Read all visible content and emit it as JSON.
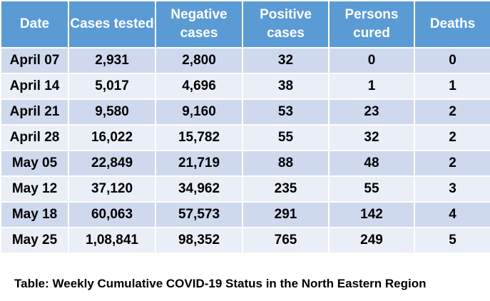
{
  "chart_data": {
    "type": "table",
    "columns": [
      "Date",
      "Cases tested",
      "Negative cases",
      "Positive cases",
      "Persons cured",
      "Deaths"
    ],
    "rows": [
      [
        "April 07",
        "2,931",
        "2,800",
        "32",
        "0",
        "0"
      ],
      [
        "April 14",
        "5,017",
        "4,696",
        "38",
        "1",
        "1"
      ],
      [
        "April 21",
        "9,580",
        "9,160",
        "53",
        "23",
        "2"
      ],
      [
        "April 28",
        "16,022",
        "15,782",
        "55",
        "32",
        "2"
      ],
      [
        "May 05",
        "22,849",
        "21,719",
        "88",
        "48",
        "2"
      ],
      [
        "May 12",
        "37,120",
        "34,962",
        "235",
        "55",
        "3"
      ],
      [
        "May 18",
        "60,063",
        "57,573",
        "291",
        "142",
        "4"
      ],
      [
        "May 25",
        "1,08,841",
        "98,352",
        "765",
        "249",
        "5"
      ]
    ],
    "title": "Table: Weekly Cumulative COVID-19 Status in the North Eastern Region"
  },
  "colors": {
    "header_bg": "#5b9bd5",
    "row_dark": "#cfd9ed",
    "row_light": "#e9eef7"
  }
}
